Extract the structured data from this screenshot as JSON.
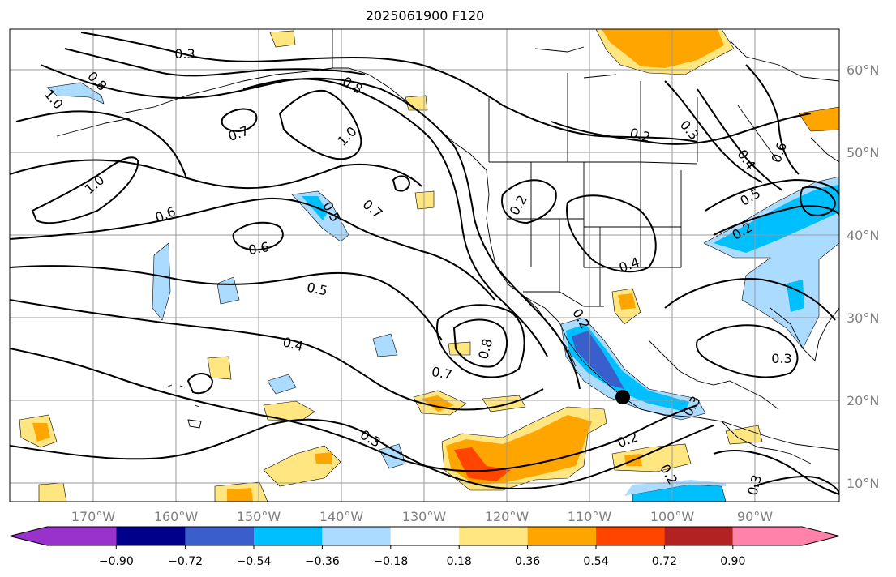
{
  "title": "2025061900 F120",
  "map": {
    "lon_ticks": [
      "170°W",
      "160°W",
      "150°W",
      "140°W",
      "130°W",
      "120°W",
      "110°W",
      "100°W",
      "90°W"
    ],
    "lat_ticks": [
      "60°N",
      "50°N",
      "40°N",
      "30°N",
      "20°N",
      "10°N"
    ],
    "contour_labels": [
      "0.3",
      "0.8",
      "1.0",
      "0.7",
      "0.8",
      "1.0",
      "0.6",
      "1.0",
      "0.6",
      "0.5",
      "0.7",
      "0.5",
      "0.4",
      "0.7",
      "0.8",
      "0.3",
      "0.2",
      "0.2",
      "0.4",
      "0.2",
      "0.3",
      "0.4",
      "0.6",
      "0.5",
      "0.2",
      "0.3",
      "0.3",
      "0.2",
      "0.2",
      "0.3"
    ],
    "shading_colors": {
      "pos_018": "#ffe680",
      "pos_036": "#ffa500",
      "pos_054": "#ff4500",
      "neg_018": "#abdcff",
      "neg_036": "#00bfff",
      "neg_054": "#3a5fcd"
    }
  },
  "colorbar": {
    "labels": [
      "−0.90",
      "−0.72",
      "−0.54",
      "−0.36",
      "−0.18",
      "0.18",
      "0.36",
      "0.54",
      "0.72",
      "0.90"
    ],
    "colors": [
      "#9932cc",
      "#00008b",
      "#3a5fcd",
      "#00bfff",
      "#abdcff",
      "#ffffff",
      "#ffe680",
      "#ffa500",
      "#ff4500",
      "#b22222",
      "#ff82ab",
      "#ff82ab"
    ]
  }
}
